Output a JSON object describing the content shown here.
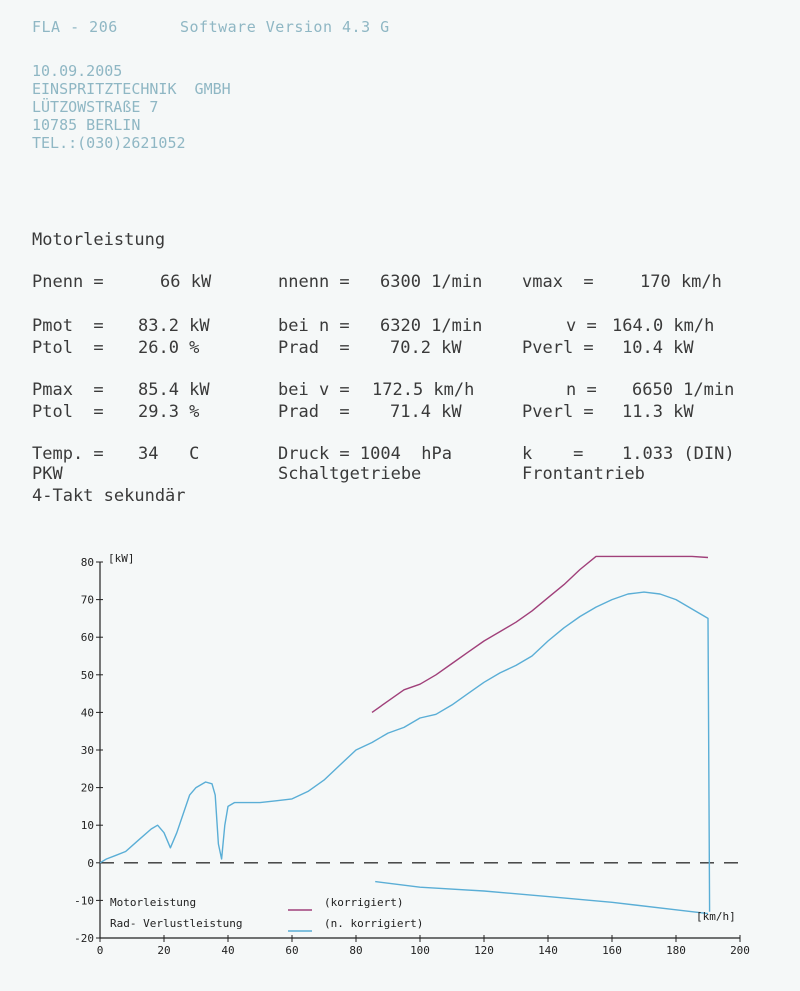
{
  "header": {
    "device": "FLA - 206",
    "software": "Software Version  4.3 G"
  },
  "address": {
    "date": "10.09.2005",
    "company": "EINSPRITZTECHNIK  GMBH",
    "street": "LÜTZOWSTRAßE 7",
    "city": "10785 BERLIN",
    "phone": "TEL.:(030)2621052"
  },
  "report": {
    "title": "Motorleistung",
    "pnenn_label": "Pnenn =",
    "pnenn_value": "66 kW",
    "nnenn_label": "nnenn =",
    "nnenn_value": "6300 1/min",
    "vmax_label": "vmax  =",
    "vmax_value": "170 km/h",
    "pmot_label": "Pmot  =",
    "pmot_value": "83.2 kW",
    "bein_label": "bei n =",
    "bein_value": "6320 1/min",
    "v_label": "v =",
    "v_value": "164.0 km/h",
    "ptol1_label": "Ptol  =",
    "ptol1_value": "26.0 %",
    "prad1_label": "Prad  =",
    "prad1_value": "70.2 kW",
    "pverl1_label": "Pverl =",
    "pverl1_value": "10.4 kW",
    "pmax_label": "Pmax  =",
    "pmax_value": "85.4 kW",
    "beiv_label": "bei v =",
    "beiv_value": "172.5 km/h",
    "n_label": "n =",
    "n_value": "6650 1/min",
    "ptol2_label": "Ptol  =",
    "ptol2_value": "29.3 %",
    "prad2_label": "Prad  =",
    "prad2_value": "71.4 kW",
    "pverl2_label": "Pverl =",
    "pverl2_value": "11.3 kW",
    "temp_label": "Temp. =",
    "temp_value": "34   C",
    "druck": "Druck = 1004  hPa",
    "k_label": "k    =",
    "k_value": "1.033 (DIN)",
    "vehicle": "PKW",
    "gearbox": "Schaltgetriebe",
    "drive": "Frontantrieb",
    "engine": "4-Takt sekundär"
  },
  "chart_data": {
    "type": "line",
    "ylabel": "[kW]",
    "xlabel": "[km/h]",
    "xlim": [
      0,
      200
    ],
    "ylim": [
      -20,
      80
    ],
    "x_ticks": [
      0,
      20,
      40,
      60,
      80,
      100,
      120,
      140,
      160,
      180,
      200
    ],
    "y_ticks": [
      -20,
      -10,
      0,
      10,
      20,
      30,
      40,
      50,
      60,
      70,
      80
    ],
    "legend": {
      "row1_name": "Motorleistung",
      "row1_note": "(korrigiert)",
      "row2_name": "Rad- Verlustleistung",
      "row2_note": "(n. korrigiert)"
    },
    "colors": {
      "motor": "#a0407a",
      "rad": "#5aaed6",
      "zero": "#333333"
    },
    "series": [
      {
        "key": "motor",
        "x": [
          85,
          90,
          95,
          100,
          105,
          110,
          115,
          120,
          125,
          130,
          135,
          140,
          145,
          150,
          155,
          160,
          165,
          170,
          175,
          180,
          185,
          190
        ],
        "y": [
          40.0,
          43.0,
          46.0,
          47.5,
          50.0,
          53.0,
          56.0,
          59.0,
          61.5,
          64.0,
          67.0,
          70.5,
          74.0,
          78.0,
          81.5,
          81.5,
          81.5,
          81.5,
          81.5,
          81.5,
          81.5,
          81.2
        ]
      },
      {
        "key": "rad",
        "x": [
          0,
          2,
          5,
          8,
          12,
          16,
          18,
          20,
          22,
          24,
          26,
          28,
          30,
          33,
          35,
          36,
          37,
          38,
          39,
          40,
          42,
          45,
          50,
          55,
          60,
          65,
          70,
          75,
          80,
          85,
          90,
          95,
          100,
          105,
          110,
          115,
          120,
          125,
          130,
          135,
          140,
          145,
          150,
          155,
          160,
          165,
          170,
          175,
          180,
          185,
          188,
          190,
          190.5
        ],
        "y": [
          0,
          1,
          2,
          3,
          6,
          9,
          10,
          8,
          4,
          8,
          13,
          18,
          20,
          21.5,
          21,
          18,
          5,
          1,
          10,
          15,
          16,
          16,
          16,
          16.5,
          17,
          19,
          22,
          26,
          30,
          32,
          34.5,
          36,
          38.5,
          39.5,
          42,
          45,
          48,
          50.5,
          52.5,
          55,
          59,
          62.5,
          65.5,
          68,
          70,
          71.5,
          72,
          71.5,
          70,
          67.5,
          66,
          65,
          -13
        ]
      },
      {
        "key": "rad_loss",
        "x": [
          86,
          100,
          120,
          140,
          160,
          180,
          190
        ],
        "y": [
          -5,
          -6.5,
          -7.5,
          -9,
          -10.5,
          -12.5,
          -13.5
        ]
      }
    ]
  }
}
